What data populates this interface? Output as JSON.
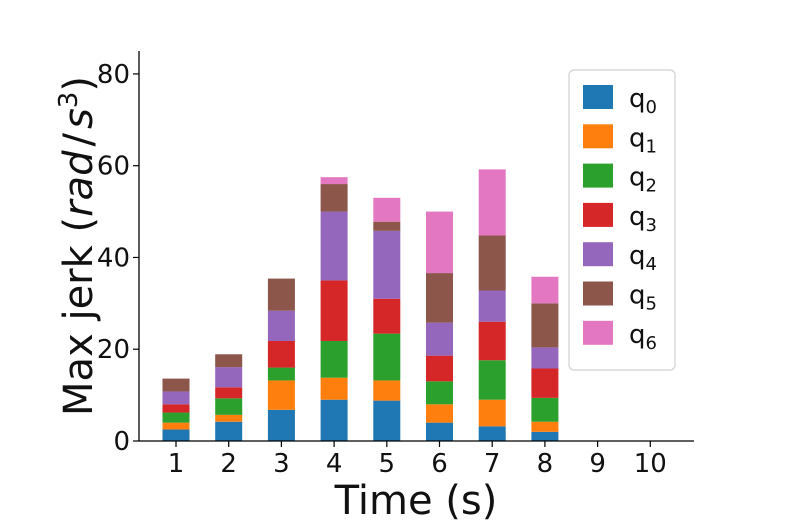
{
  "chart_data": {
    "type": "bar",
    "stacked": true,
    "categories": [
      "1",
      "2",
      "3",
      "4",
      "5",
      "6",
      "7",
      "8",
      "9",
      "10"
    ],
    "series": [
      {
        "name": "q",
        "sub": "0",
        "color": "#1f77b4",
        "values": [
          2.5,
          4.2,
          6.8,
          9.0,
          8.8,
          4.0,
          3.2,
          2.0,
          0,
          0
        ]
      },
      {
        "name": "q",
        "sub": "1",
        "color": "#ff7f0e",
        "values": [
          1.5,
          1.5,
          6.4,
          4.8,
          4.4,
          4.0,
          5.8,
          2.2,
          0,
          0
        ]
      },
      {
        "name": "q",
        "sub": "2",
        "color": "#2ca02c",
        "values": [
          2.2,
          3.6,
          2.8,
          8.0,
          10.2,
          5.0,
          8.6,
          5.2,
          0,
          0
        ]
      },
      {
        "name": "q",
        "sub": "3",
        "color": "#d62728",
        "values": [
          1.8,
          2.4,
          5.8,
          13.2,
          7.6,
          5.6,
          8.4,
          6.4,
          0,
          0
        ]
      },
      {
        "name": "q",
        "sub": "4",
        "color": "#9467bd",
        "values": [
          2.8,
          4.4,
          6.6,
          15.0,
          14.8,
          7.2,
          6.8,
          4.6,
          0,
          0
        ]
      },
      {
        "name": "q",
        "sub": "5",
        "color": "#8c564b",
        "values": [
          2.8,
          2.8,
          7.0,
          6.0,
          2.0,
          10.8,
          12.0,
          9.6,
          0,
          0
        ]
      },
      {
        "name": "q",
        "sub": "6",
        "color": "#e377c2",
        "values": [
          0,
          0,
          0,
          1.5,
          5.2,
          13.4,
          14.4,
          5.8,
          0,
          0
        ]
      }
    ],
    "xlabel": "Time (s)",
    "ylabel": {
      "prefix": "Max jerk (",
      "unit": "rad",
      "slash": "/",
      "s": "s",
      "exp": "3",
      "suffix": ")"
    },
    "ylim": [
      0,
      85
    ],
    "yticks": [
      0,
      20,
      40,
      60,
      80
    ],
    "legend_position": "top-right"
  }
}
